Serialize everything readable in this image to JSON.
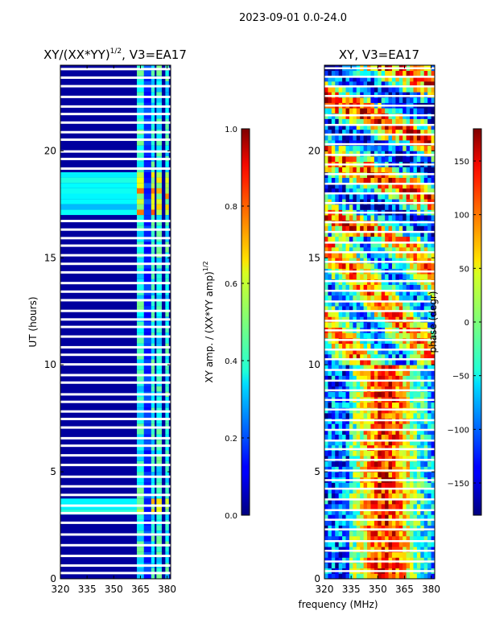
{
  "figure_title": "2023-09-01 0.0-24.0",
  "chart_data": [
    {
      "type": "heatmap",
      "title": "XY/(XX*YY)",
      "title_exponent": "1/2",
      "title_suffix": ", V3=EA17",
      "xlabel": "",
      "ylabel": "UT (hours)",
      "xlim": [
        320,
        382
      ],
      "ylim": [
        0,
        24
      ],
      "xticks": [
        "320",
        "335",
        "350",
        "365",
        "380"
      ],
      "yticks": [
        "0",
        "5",
        "10",
        "15",
        "20"
      ],
      "colorscale": "jet",
      "colorbar": {
        "label": "XY amp. / (XX*YY amp)",
        "label_exponent": "1/2",
        "range": [
          0.0,
          1.0
        ],
        "ticks": [
          "0.0",
          "0.2",
          "0.4",
          "0.6",
          "0.8",
          "1.0"
        ]
      },
      "background_value": 0.03,
      "bright_bands_mhz": [
        [
          363,
          367
        ],
        [
          371,
          373
        ],
        [
          374,
          377
        ],
        [
          379,
          381
        ]
      ],
      "highlight_hours": [
        [
          16.9,
          18.9
        ],
        [
          2.9,
          3.6
        ]
      ],
      "gap_hours": [
        0.25,
        0.6,
        1.05,
        1.55,
        2.05,
        2.6,
        3.05,
        3.4,
        3.9,
        4.3,
        4.75,
        5.3,
        5.75,
        6.2,
        6.55,
        7.05,
        7.45,
        7.8,
        8.25,
        8.6,
        9.15,
        9.5,
        10.0,
        10.45,
        10.8,
        11.3,
        11.75,
        12.1,
        12.5,
        13.0,
        13.4,
        13.8,
        14.3,
        14.7,
        15.1,
        15.55,
        15.9,
        16.3,
        16.7,
        19.15,
        19.6,
        19.95,
        20.5,
        20.85,
        21.3,
        21.7,
        22.05,
        22.5,
        23.0,
        23.4,
        23.8
      ]
    },
    {
      "type": "heatmap",
      "title": "XY, V3=EA17",
      "xlabel": "frequency (MHz)",
      "ylabel": "",
      "xlim": [
        320,
        382
      ],
      "ylim": [
        0,
        24
      ],
      "xticks": [
        "320",
        "335",
        "350",
        "365",
        "380"
      ],
      "yticks": [
        "0",
        "5",
        "10",
        "15",
        "20"
      ],
      "colorscale": "jet",
      "colorbar": {
        "label": "phase (degr)",
        "range": [
          -180,
          180
        ],
        "ticks": [
          "−150",
          "−100",
          "−50",
          "0",
          "50",
          "100",
          "150"
        ]
      },
      "gap_hours": [
        0.35,
        0.8,
        1.3,
        1.75,
        2.3,
        2.75,
        3.2,
        3.7,
        4.2,
        4.6,
        5.05,
        5.55,
        6.05,
        6.45,
        6.95,
        7.4,
        7.9,
        8.35,
        8.8,
        9.25,
        9.75,
        10.25,
        10.7,
        11.15,
        11.6,
        12.05,
        12.5,
        12.95,
        13.45,
        13.9,
        14.35,
        14.8,
        15.25,
        15.7,
        16.2,
        16.65,
        17.1,
        17.55,
        18.0,
        18.45,
        18.9,
        19.35,
        19.8,
        20.3,
        20.75,
        21.2,
        21.65,
        22.1,
        22.55,
        23.0,
        23.45,
        23.85
      ]
    }
  ]
}
